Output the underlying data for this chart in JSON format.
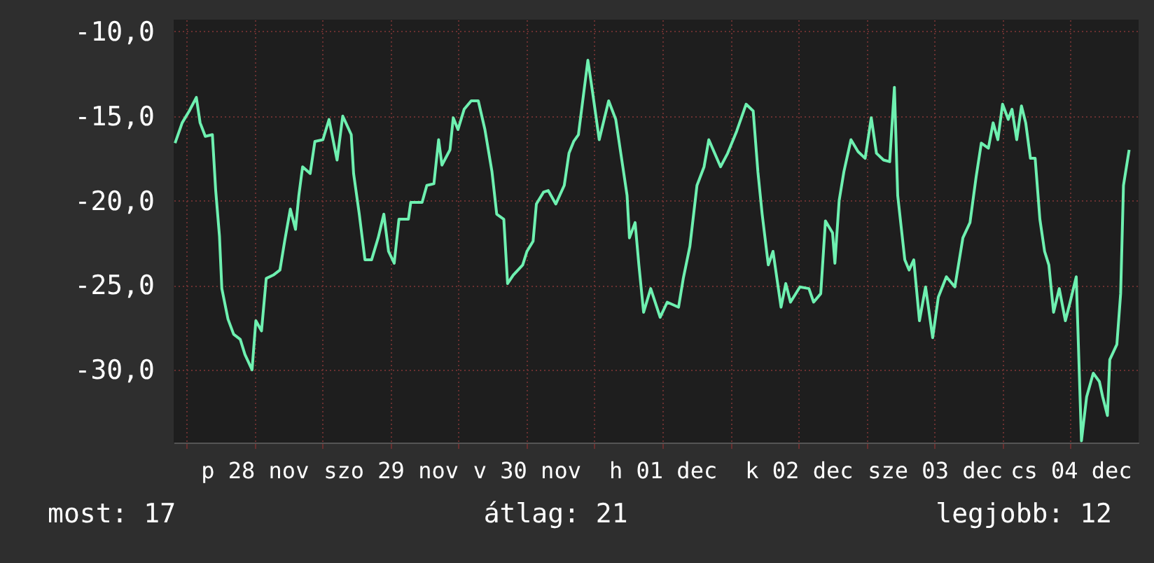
{
  "chart_data": {
    "type": "line",
    "color": "#6ef0b0",
    "grid": true,
    "marker": "none",
    "line_style": "solid",
    "x": [
      "--11-27T22:00",
      "--11-27T23:15",
      "--11-28T00:30",
      "--11-28T01:45",
      "--11-28T02:25",
      "--11-28T03:20",
      "--11-28T04:35",
      "--11-28T05:10",
      "--11-28T05:50",
      "--11-28T06:15",
      "--11-28T07:20",
      "--11-28T08:20",
      "--11-28T09:30",
      "--11-28T10:20",
      "--11-28T11:35",
      "--11-28T12:15",
      "--11-28T13:15",
      "--11-28T14:05",
      "--11-28T15:20",
      "--11-28T16:30",
      "--11-28T17:20",
      "--11-28T18:20",
      "--11-28T19:15",
      "--11-28T19:50",
      "--11-28T20:30",
      "--11-28T21:50",
      "--11-28T22:40",
      "--11-29T00:05",
      "--11-29T01:10",
      "--11-29T02:35",
      "--11-29T03:35",
      "--11-29T05:05",
      "--11-29T05:30",
      "--11-29T06:30",
      "--11-29T07:30",
      "--11-29T08:40",
      "--11-29T09:50",
      "--11-29T10:50",
      "--11-29T11:40",
      "--11-29T12:40",
      "--11-29T13:30",
      "--11-29T15:10",
      "--11-29T15:35",
      "--11-29T17:35",
      "--11-29T18:25",
      "--11-29T19:40",
      "--11-29T20:30",
      "--11-29T21:05",
      "--11-29T22:30",
      "--11-29T23:05",
      "--11-29T23:55",
      "--11-30T01:00",
      "--11-30T02:15",
      "--11-30T03:30",
      "--11-30T04:40",
      "--11-30T05:55",
      "--11-30T06:45",
      "--11-30T08:00",
      "--11-30T08:40",
      "--11-30T09:40",
      "--11-30T11:20",
      "--11-30T12:05",
      "--11-30T13:10",
      "--11-30T13:45",
      "--11-30T15:00",
      "--11-30T15:50",
      "--11-30T17:10",
      "--11-30T18:40",
      "--11-30T19:30",
      "--11-30T20:20",
      "--11-30T21:10",
      "--11-30T22:50",
      "--11-30T23:40",
      "--12-01T00:50",
      "--12-01T02:30",
      "--12-01T03:45",
      "--12-01T05:00",
      "--12-01T05:45",
      "--12-01T06:10",
      "--12-01T07:10",
      "--12-01T07:50",
      "--12-01T08:40",
      "--12-01T09:55",
      "--12-01T11:35",
      "--12-01T12:50",
      "--12-01T14:50",
      "--12-01T15:40",
      "--12-01T16:50",
      "--12-01T18:05",
      "--12-01T19:20",
      "--12-01T20:10",
      "--12-01T22:15",
      "--12-01T23:30",
      "--12-02T01:05",
      "--12-02T02:45",
      "--12-02T04:00",
      "--12-02T04:50",
      "--12-02T05:35",
      "--12-02T06:40",
      "--12-02T07:30",
      "--12-02T08:55",
      "--12-02T09:45",
      "--12-02T10:35",
      "--12-02T12:15",
      "--12-02T13:50",
      "--12-02T14:40",
      "--12-02T15:55",
      "--12-02T16:45",
      "--12-02T18:00",
      "--12-02T18:25",
      "--12-02T19:10",
      "--12-02T20:00",
      "--12-02T21:15",
      "--12-02T22:30",
      "--12-02T23:45",
      "--12-03T00:50",
      "--12-03T01:45",
      "--12-03T03:00",
      "--12-03T04:05",
      "--12-03T04:55",
      "--12-03T05:30",
      "--12-03T06:45",
      "--12-03T07:30",
      "--12-03T08:20",
      "--12-03T09:20",
      "--12-03T10:25",
      "--12-03T11:40",
      "--12-03T12:40",
      "--12-03T14:05",
      "--12-03T15:35",
      "--12-03T17:00",
      "--12-03T18:15",
      "--12-03T19:20",
      "--12-03T20:15",
      "--12-03T21:30",
      "--12-03T22:20",
      "--12-03T23:10",
      "--12-04T00:00",
      "--12-04T01:00",
      "--12-04T01:40",
      "--12-04T02:30",
      "--12-04T03:20",
      "--12-04T04:05",
      "--12-04T04:55",
      "--12-04T05:45",
      "--12-04T06:35",
      "--12-04T07:25",
      "--12-04T08:10",
      "--12-04T09:00",
      "--12-04T10:00",
      "--12-04T11:05",
      "--12-04T11:55",
      "--12-04T13:00",
      "--12-04T13:55",
      "--12-04T14:50",
      "--12-04T16:00",
      "--12-04T17:05",
      "--12-04T17:40",
      "--12-04T18:30",
      "--12-04T18:55",
      "--12-04T20:10",
      "--12-04T20:50",
      "--12-04T21:20",
      "--12-04T22:20"
    ],
    "values": [
      -16.6,
      -15.4,
      -14.7,
      -13.9,
      -15.4,
      -16.2,
      -16.1,
      -19.4,
      -22.1,
      -25.2,
      -27.0,
      -27.9,
      -28.2,
      -29.1,
      -30.0,
      -27.1,
      -27.7,
      -24.6,
      -24.4,
      -24.1,
      -22.4,
      -20.5,
      -21.7,
      -19.7,
      -18.0,
      -18.4,
      -16.5,
      -16.4,
      -15.2,
      -17.6,
      -15.0,
      -16.1,
      -18.4,
      -20.8,
      -23.5,
      -23.5,
      -22.2,
      -20.8,
      -23.0,
      -23.7,
      -21.1,
      -21.1,
      -20.1,
      -20.1,
      -19.1,
      -19.0,
      -16.4,
      -17.9,
      -17.0,
      -15.1,
      -15.8,
      -14.6,
      -14.1,
      -14.1,
      -15.8,
      -18.3,
      -20.8,
      -21.1,
      -24.9,
      -24.4,
      -23.8,
      -23.0,
      -22.4,
      -20.2,
      -19.5,
      -19.4,
      -20.2,
      -19.1,
      -17.2,
      -16.5,
      -16.1,
      -11.7,
      -13.6,
      -16.4,
      -14.1,
      -15.2,
      -18.0,
      -19.7,
      -22.2,
      -21.3,
      -23.8,
      -26.6,
      -25.2,
      -26.9,
      -26.0,
      -26.3,
      -24.6,
      -22.7,
      -19.1,
      -18.0,
      -16.4,
      -18.0,
      -17.2,
      -15.9,
      -14.3,
      -14.7,
      -18.3,
      -20.8,
      -23.8,
      -23.0,
      -26.3,
      -24.9,
      -26.0,
      -25.1,
      -25.2,
      -26.0,
      -25.5,
      -21.2,
      -21.9,
      -23.7,
      -20.0,
      -18.3,
      -16.4,
      -17.1,
      -17.5,
      -15.1,
      -17.2,
      -17.6,
      -17.7,
      -13.3,
      -19.7,
      -23.5,
      -24.1,
      -23.5,
      -27.1,
      -25.1,
      -28.1,
      -25.7,
      -24.5,
      -25.1,
      -22.2,
      -21.3,
      -18.6,
      -16.6,
      -16.9,
      -15.4,
      -16.4,
      -14.3,
      -15.2,
      -14.6,
      -16.4,
      -14.4,
      -15.4,
      -17.5,
      -17.5,
      -21.1,
      -23.0,
      -23.8,
      -26.6,
      -25.2,
      -27.1,
      -26.0,
      -24.5,
      -34.2,
      -31.6,
      -30.2,
      -30.7,
      -31.6,
      -32.7,
      -29.4,
      -28.5,
      -25.5,
      -19.1,
      -17.0
    ],
    "xlim": [
      "--11-27T21:45",
      "--12-05T00:00"
    ],
    "xticks": [
      {
        "value": "--11-28T00:00",
        "label": null
      },
      {
        "value": "--11-28T12:00",
        "label": "p 28 nov"
      },
      {
        "value": "--11-29T00:00",
        "label": null
      },
      {
        "value": "--11-29T12:00",
        "label": "szo 29 nov"
      },
      {
        "value": "--11-30T00:00",
        "label": null
      },
      {
        "value": "--11-30T12:00",
        "label": "v 30 nov"
      },
      {
        "value": "--12-01T00:00",
        "label": null
      },
      {
        "value": "--12-01T12:00",
        "label": "h 01 dec"
      },
      {
        "value": "--12-02T00:00",
        "label": null
      },
      {
        "value": "--12-02T12:00",
        "label": "k 02 dec"
      },
      {
        "value": "--12-03T00:00",
        "label": null
      },
      {
        "value": "--12-03T12:00",
        "label": "sze 03 dec"
      },
      {
        "value": "--12-04T00:00",
        "label": null
      },
      {
        "value": "--12-04T12:00",
        "label": "cs 04 dec"
      }
    ],
    "ylim": [
      -34.3,
      -9.3
    ],
    "yticks": [
      {
        "value": -10,
        "label": "-10,0"
      },
      {
        "value": -15,
        "label": "-15,0"
      },
      {
        "value": -20,
        "label": "-20,0"
      },
      {
        "value": -25,
        "label": "-25,0"
      },
      {
        "value": -30,
        "label": "-30,0"
      }
    ],
    "annotations": [
      "most: 17",
      "átlag: 21",
      "legjobb: 12"
    ]
  }
}
